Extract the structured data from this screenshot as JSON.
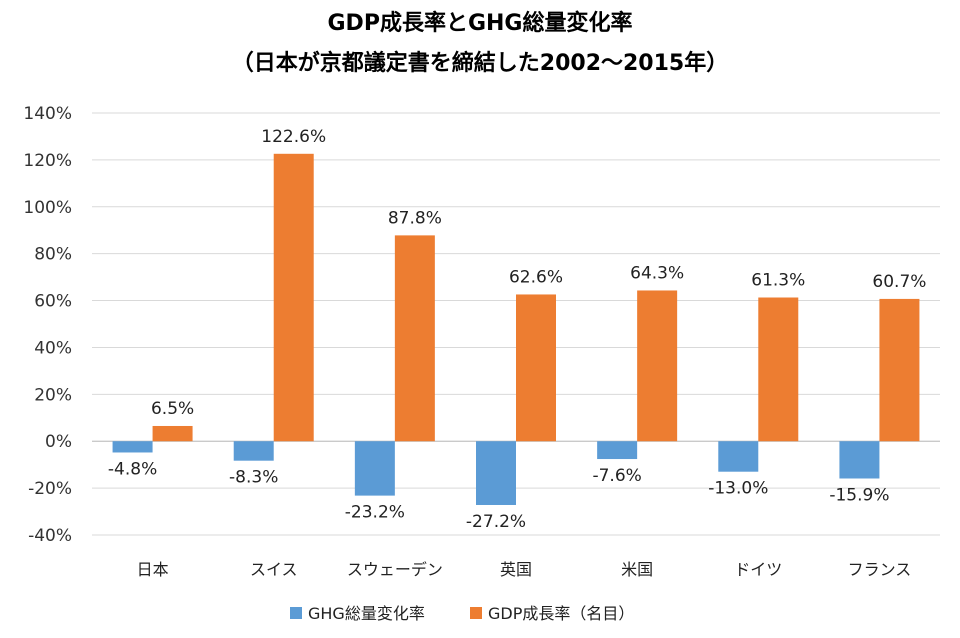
{
  "chart_data": {
    "type": "bar",
    "title": "GDP成長率とGHG総量変化率",
    "subtitle": "（日本が京都議定書を締結した2002～2015年）",
    "categories": [
      "日本",
      "スイス",
      "スウェーデン",
      "英国",
      "米国",
      "ドイツ",
      "フランス"
    ],
    "series": [
      {
        "name": "GHG総量変化率",
        "color": "#5B9BD5",
        "values": [
          -4.8,
          -8.3,
          -23.2,
          -27.2,
          -7.6,
          -13.0,
          -15.9
        ],
        "labels": [
          "-4.8%",
          "-8.3%",
          "-23.2%",
          "-27.2%",
          "-7.6%",
          "-13.0%",
          "-15.9%"
        ]
      },
      {
        "name": "GDP成長率（名目）",
        "color": "#ED7D31",
        "values": [
          6.5,
          122.6,
          87.8,
          62.6,
          64.3,
          61.3,
          60.7
        ],
        "labels": [
          "6.5%",
          "122.6%",
          "87.8%",
          "62.6%",
          "64.3%",
          "61.3%",
          "60.7%"
        ]
      }
    ],
    "ylim": [
      -40,
      140
    ],
    "yticks": [
      140,
      120,
      100,
      80,
      60,
      40,
      20,
      0,
      -20,
      -40
    ],
    "ytick_labels": [
      "140%",
      "120%",
      "100%",
      "80%",
      "60%",
      "40%",
      "20%",
      "0%",
      "-20%",
      "-40%"
    ],
    "grid": true,
    "legend_position": "bottom"
  }
}
